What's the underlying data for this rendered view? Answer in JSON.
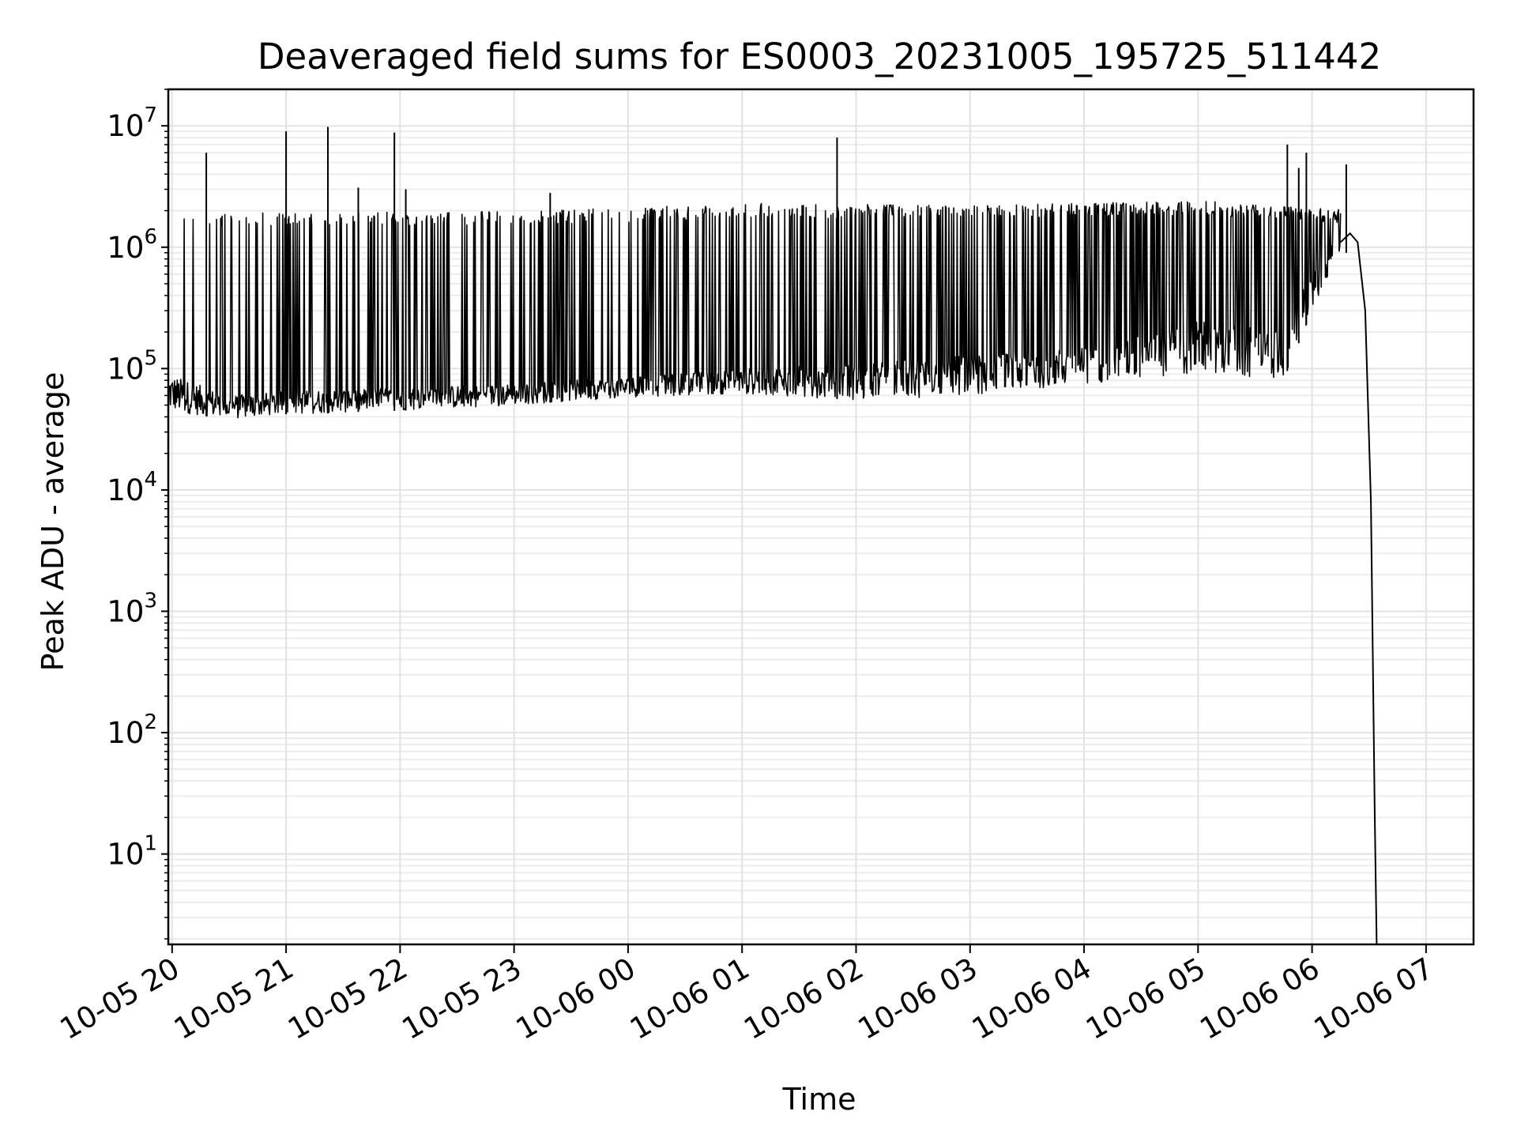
{
  "chart_data": {
    "type": "line",
    "title": "Deaveraged field sums for ES0003_20231005_195725_511442",
    "xlabel": "Time",
    "ylabel": "Peak ADU - average",
    "y_scale": "log",
    "ylim": [
      1.8,
      20000000
    ],
    "xlim": [
      "2023-10-05 19:58",
      "2023-10-06 07:25"
    ],
    "grid": true,
    "x_ticks": [
      "10-05 20",
      "10-05 21",
      "10-05 22",
      "10-05 23",
      "10-06 00",
      "10-06 01",
      "10-06 02",
      "10-06 03",
      "10-06 04",
      "10-06 05",
      "10-06 06",
      "10-06 07"
    ],
    "y_ticks": [
      {
        "base": "10",
        "exp": "1"
      },
      {
        "base": "10",
        "exp": "2"
      },
      {
        "base": "10",
        "exp": "3"
      },
      {
        "base": "10",
        "exp": "4"
      },
      {
        "base": "10",
        "exp": "5"
      },
      {
        "base": "10",
        "exp": "6"
      },
      {
        "base": "10",
        "exp": "7"
      }
    ],
    "line_color": "#000000",
    "series": [
      {
        "baseline_profile": [
          {
            "x": "2023-10-05 19:58",
            "low": 45000,
            "high": 90000
          },
          {
            "x": "2023-10-05 20:30",
            "low": 38000,
            "high": 60000
          },
          {
            "x": "2023-10-05 21:00",
            "low": 42000,
            "high": 65000
          },
          {
            "x": "2023-10-05 22:00",
            "low": 45000,
            "high": 70000
          },
          {
            "x": "2023-10-05 23:00",
            "low": 50000,
            "high": 75000
          },
          {
            "x": "2023-10-06 00:00",
            "low": 58000,
            "high": 85000
          },
          {
            "x": "2023-10-06 01:00",
            "low": 62000,
            "high": 100000
          },
          {
            "x": "2023-10-06 02:00",
            "low": 55000,
            "high": 110000
          },
          {
            "x": "2023-10-06 03:00",
            "low": 60000,
            "high": 130000
          },
          {
            "x": "2023-10-06 04:00",
            "low": 75000,
            "high": 150000
          },
          {
            "x": "2023-10-06 05:00",
            "low": 90000,
            "high": 250000
          },
          {
            "x": "2023-10-06 05:45",
            "low": 80000,
            "high": 200000
          },
          {
            "x": "2023-10-06 06:00",
            "low": 300000,
            "high": 700000
          },
          {
            "x": "2023-10-06 06:15",
            "low": 900000,
            "high": 1300000
          }
        ],
        "spike_level_profile": [
          {
            "x": "2023-10-05 20:00",
            "value": 1800000
          },
          {
            "x": "2023-10-05 23:00",
            "value": 1900000
          },
          {
            "x": "2023-10-06 00:00",
            "value": 2000000
          },
          {
            "x": "2023-10-06 01:00",
            "value": 2200000
          },
          {
            "x": "2023-10-06 03:00",
            "value": 2100000
          },
          {
            "x": "2023-10-06 04:00",
            "value": 2200000
          },
          {
            "x": "2023-10-06 05:00",
            "value": 2300000
          },
          {
            "x": "2023-10-06 06:00",
            "value": 2000000
          }
        ],
        "large_spikes": [
          {
            "x": "2023-10-05 20:18",
            "value": 6000000
          },
          {
            "x": "2023-10-05 21:00",
            "value": 9000000
          },
          {
            "x": "2023-10-05 21:22",
            "value": 9800000
          },
          {
            "x": "2023-10-05 21:38",
            "value": 3100000
          },
          {
            "x": "2023-10-05 21:57",
            "value": 8800000
          },
          {
            "x": "2023-10-05 22:03",
            "value": 3000000
          },
          {
            "x": "2023-10-05 23:19",
            "value": 2800000
          },
          {
            "x": "2023-10-06 01:50",
            "value": 8000000
          },
          {
            "x": "2023-10-06 05:47",
            "value": 7000000
          },
          {
            "x": "2023-10-06 05:53",
            "value": 4500000
          },
          {
            "x": "2023-10-06 05:57",
            "value": 6000000
          },
          {
            "x": "2023-10-06 06:18",
            "value": 4800000
          }
        ],
        "tail": [
          {
            "x": "2023-10-06 06:15",
            "value": 1100000
          },
          {
            "x": "2023-10-06 06:20",
            "value": 1300000
          },
          {
            "x": "2023-10-06 06:24",
            "value": 1100000
          },
          {
            "x": "2023-10-06 06:28",
            "value": 300000
          },
          {
            "x": "2023-10-06 06:31",
            "value": 8000
          },
          {
            "x": "2023-10-06 06:33",
            "value": 20
          },
          {
            "x": "2023-10-06 06:34",
            "value": 1.8
          }
        ]
      }
    ]
  }
}
